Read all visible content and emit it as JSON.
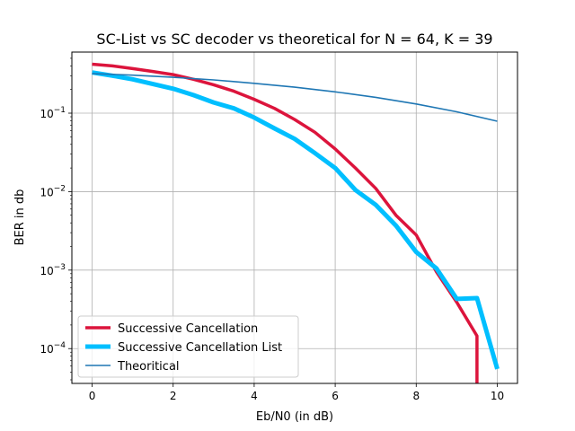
{
  "chart_data": {
    "type": "line",
    "title": "SC-List vs SC decoder vs theoretical for N = 64, K = 39",
    "xlabel": "Eb/N0 (in dB)",
    "ylabel": "BER in db",
    "xlim": [
      -0.5,
      10.5
    ],
    "ylim": [
      3.6e-05,
      0.6
    ],
    "yscale": "log",
    "grid": true,
    "legend_position": "lower-left",
    "xticks": [
      0,
      2,
      4,
      6,
      8,
      10
    ],
    "xtick_labels": [
      "0",
      "2",
      "4",
      "6",
      "8",
      "10"
    ],
    "yticks": [
      0.0001,
      0.001,
      0.01,
      0.1
    ],
    "ytick_base": "10",
    "ytick_exponents": [
      "−4",
      "−3",
      "−2",
      "−1"
    ],
    "series": [
      {
        "name": "Successive Cancellation",
        "color": "#dc143c",
        "x": [
          0,
          0.5,
          1,
          1.5,
          2,
          2.5,
          3,
          3.5,
          4,
          4.5,
          5,
          5.5,
          6,
          6.5,
          7,
          7.5,
          8,
          8.5,
          9,
          9.5,
          9.5
        ],
        "y": [
          0.42,
          0.4,
          0.37,
          0.34,
          0.31,
          0.27,
          0.23,
          0.19,
          0.15,
          0.115,
          0.083,
          0.057,
          0.035,
          0.02,
          0.011,
          0.005,
          0.0028,
          0.00095,
          0.00039,
          0.000145,
          3.6e-05
        ]
      },
      {
        "name": "Successive Cancellation List",
        "color": "#00bfff",
        "x": [
          0,
          0.5,
          1,
          1.5,
          2,
          2.5,
          3,
          3.5,
          4,
          4.5,
          5,
          5.5,
          6,
          6.5,
          7,
          7.5,
          8,
          8.5,
          9,
          9.5,
          10
        ],
        "y": [
          0.33,
          0.3,
          0.27,
          0.235,
          0.205,
          0.17,
          0.137,
          0.115,
          0.088,
          0.064,
          0.047,
          0.031,
          0.02,
          0.0105,
          0.0068,
          0.0037,
          0.0017,
          0.00105,
          0.00043,
          0.00044,
          5.5e-05
        ]
      },
      {
        "name": "Theoritical",
        "color": "#1f77b4",
        "x": [
          0,
          1,
          2,
          3,
          4,
          5,
          6,
          7,
          8,
          9,
          10
        ],
        "y": [
          0.32,
          0.305,
          0.286,
          0.265,
          0.24,
          0.214,
          0.187,
          0.159,
          0.131,
          0.104,
          0.079
        ]
      }
    ]
  }
}
